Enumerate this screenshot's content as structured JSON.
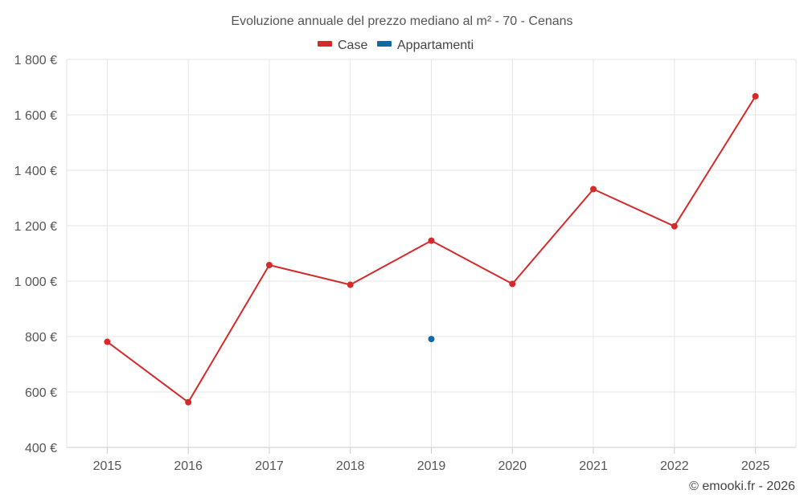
{
  "chart_data": {
    "type": "line",
    "title": "Evoluzione annuale del prezzo mediano al m² - 70 - Cenans",
    "categories": [
      "2015",
      "2016",
      "2017",
      "2018",
      "2019",
      "2020",
      "2021",
      "2022",
      "2025"
    ],
    "ylim": [
      400,
      1800
    ],
    "yticks": [
      400,
      600,
      800,
      1000,
      1200,
      1400,
      1600,
      1800
    ],
    "ytick_labels": [
      "400 €",
      "600 €",
      "800 €",
      "1 000 €",
      "1 200 €",
      "1 400 €",
      "1 600 €",
      "1 800 €"
    ],
    "grid": true,
    "legend_position": "top-center",
    "series": [
      {
        "name": "Case",
        "color": "#d42a2a",
        "values": [
          781,
          563,
          1058,
          987,
          1146,
          990,
          1332,
          1198,
          1667
        ]
      },
      {
        "name": "Appartamenti",
        "color": "#0d6aa8",
        "values": [
          null,
          null,
          null,
          null,
          791,
          null,
          null,
          null,
          null
        ]
      }
    ],
    "credit": "© emooki.fr - 2026"
  }
}
